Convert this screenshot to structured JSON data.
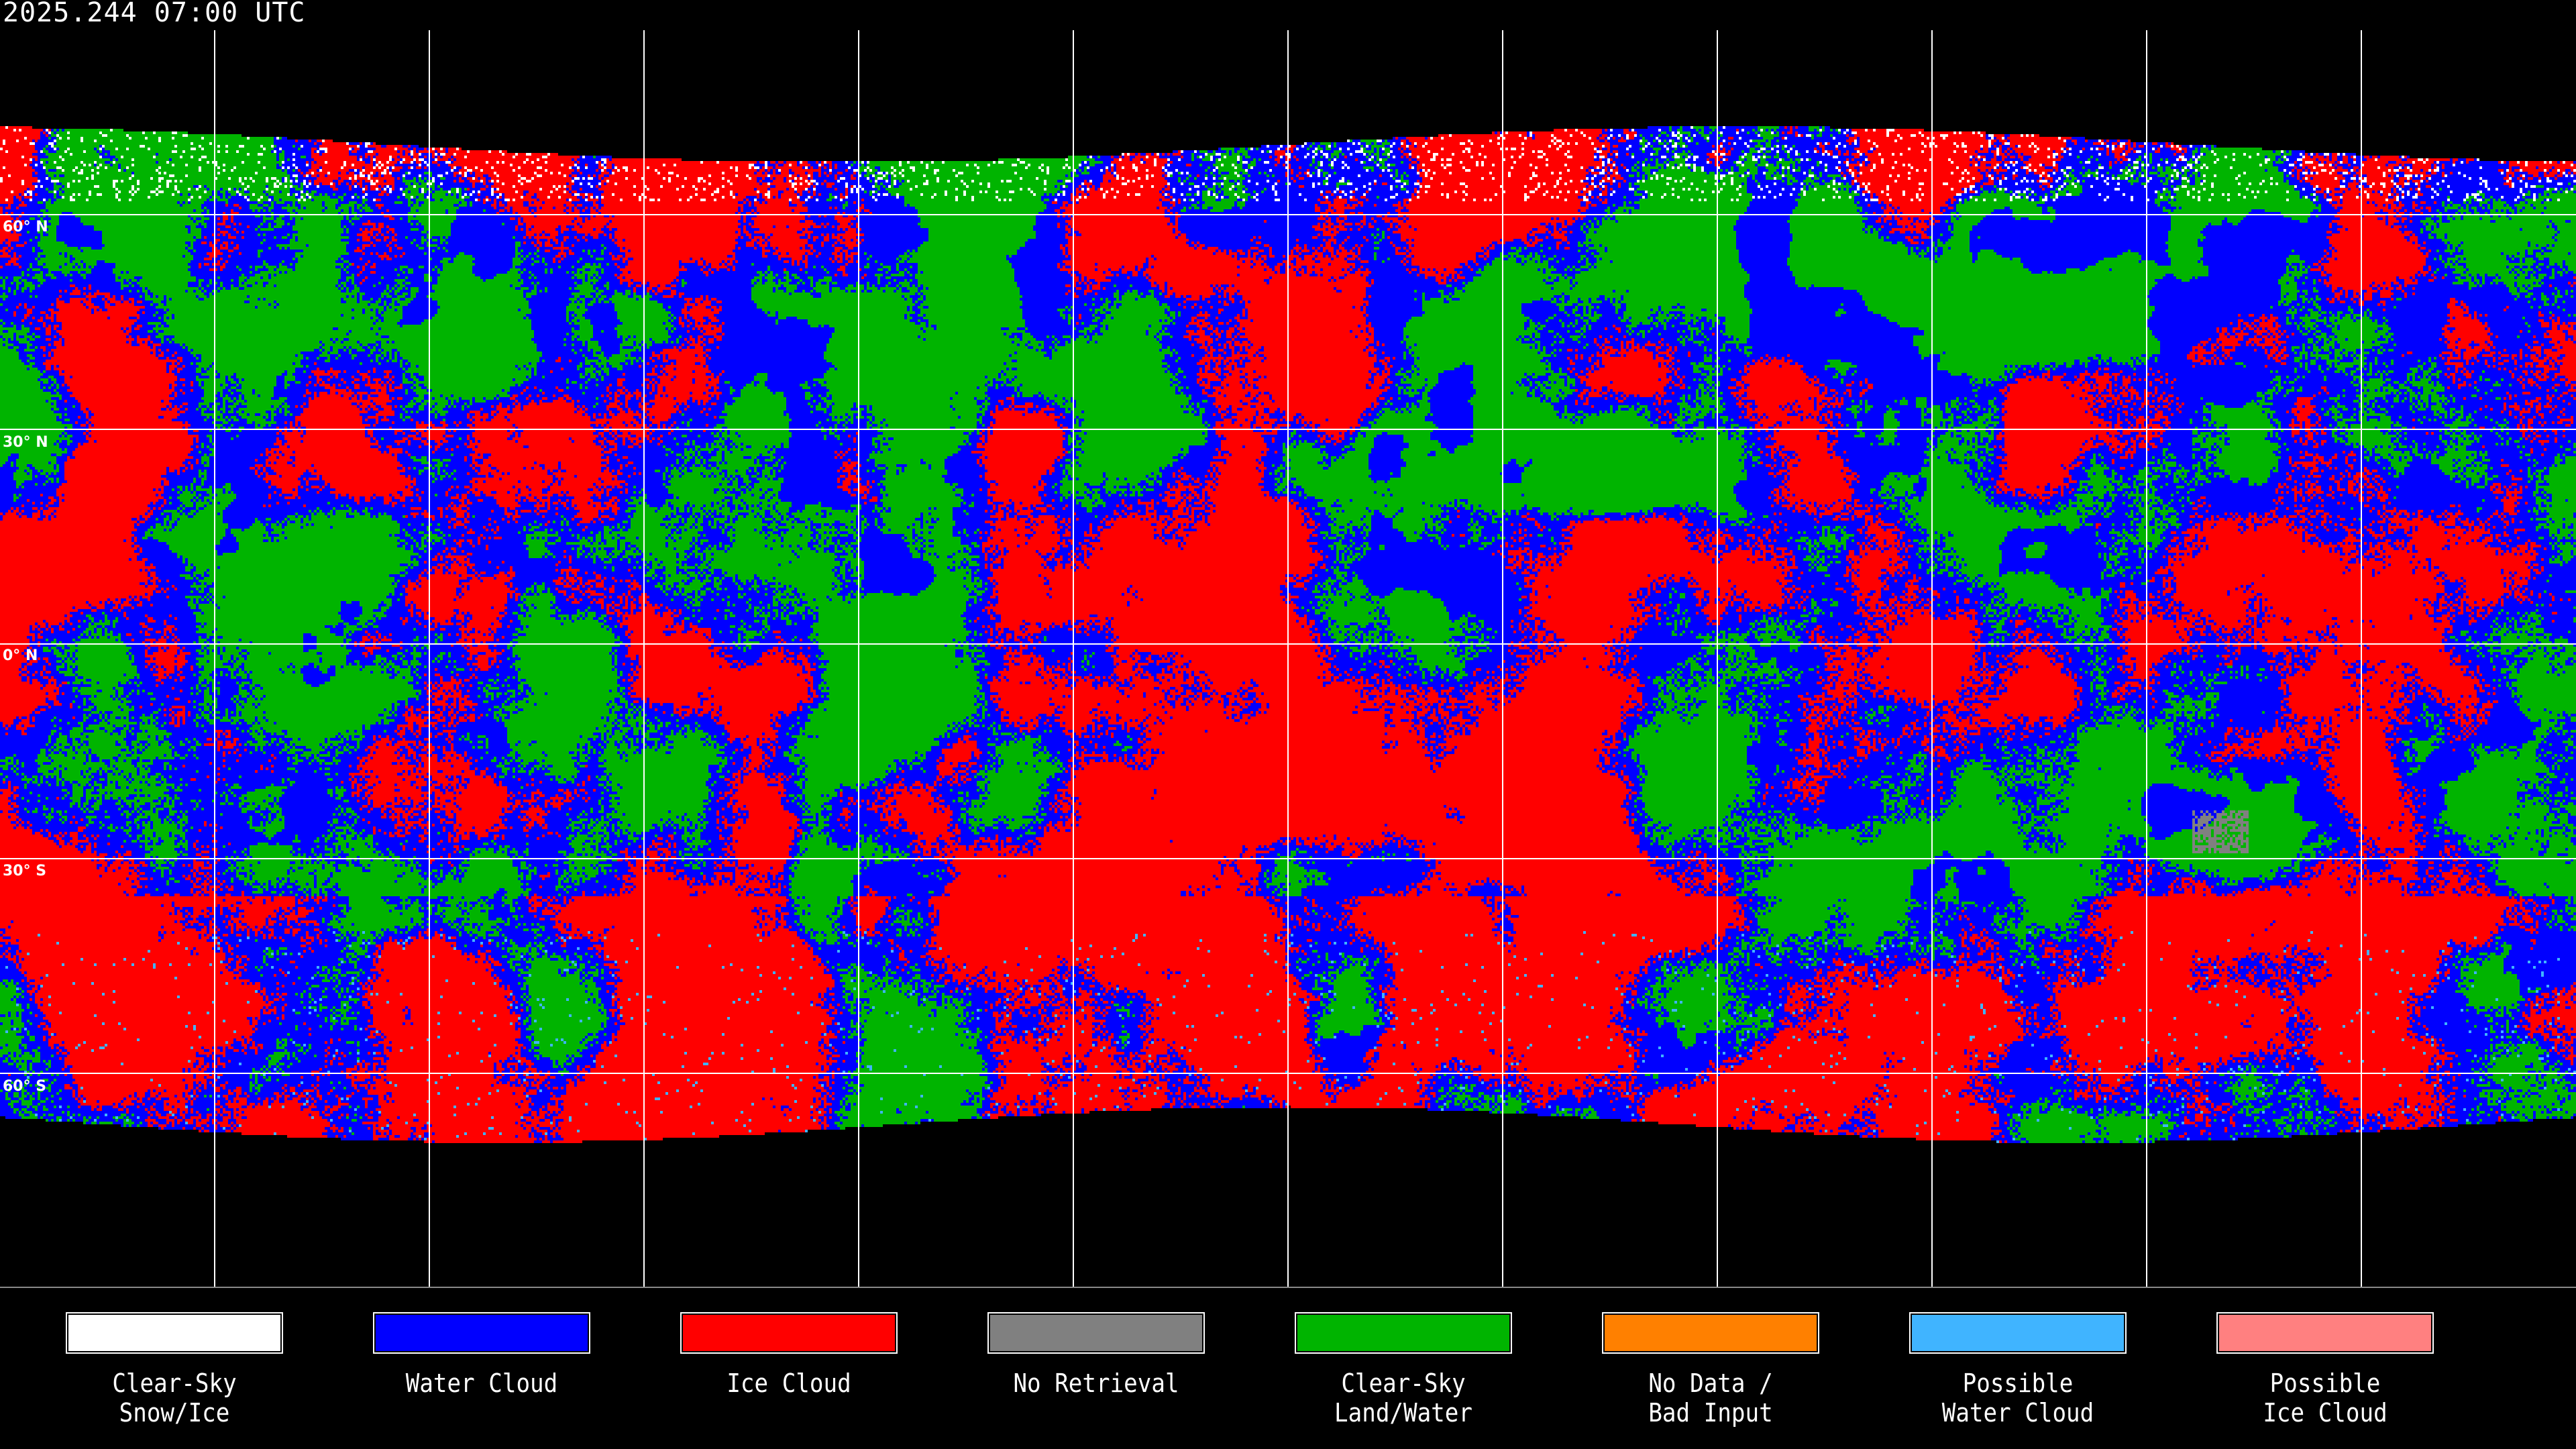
{
  "title": "2025.244 07:00 UTC",
  "latitude_labels": [
    "60° N",
    "30° N",
    "0° N",
    "30° S",
    "60° S"
  ],
  "map": {
    "projection": "equirectangular",
    "gridlines": true,
    "coastlines": true,
    "background_color": "#000000"
  },
  "legend": [
    {
      "line1": "Clear-Sky",
      "line2": "Snow/Ice",
      "color": "#ffffff"
    },
    {
      "line1": "Water Cloud",
      "line2": "",
      "color": "#0000ff"
    },
    {
      "line1": "Ice Cloud",
      "line2": "",
      "color": "#ff0000"
    },
    {
      "line1": "No Retrieval",
      "line2": "",
      "color": "#808080"
    },
    {
      "line1": "Clear-Sky",
      "line2": "Land/Water",
      "color": "#00b400"
    },
    {
      "line1": "No Data /",
      "line2": "Bad Input",
      "color": "#ff8000"
    },
    {
      "line1": "Possible",
      "line2": "Water Cloud",
      "color": "#40b4ff"
    },
    {
      "line1": "Possible",
      "line2": "Ice Cloud",
      "color": "#ff8080"
    }
  ]
}
